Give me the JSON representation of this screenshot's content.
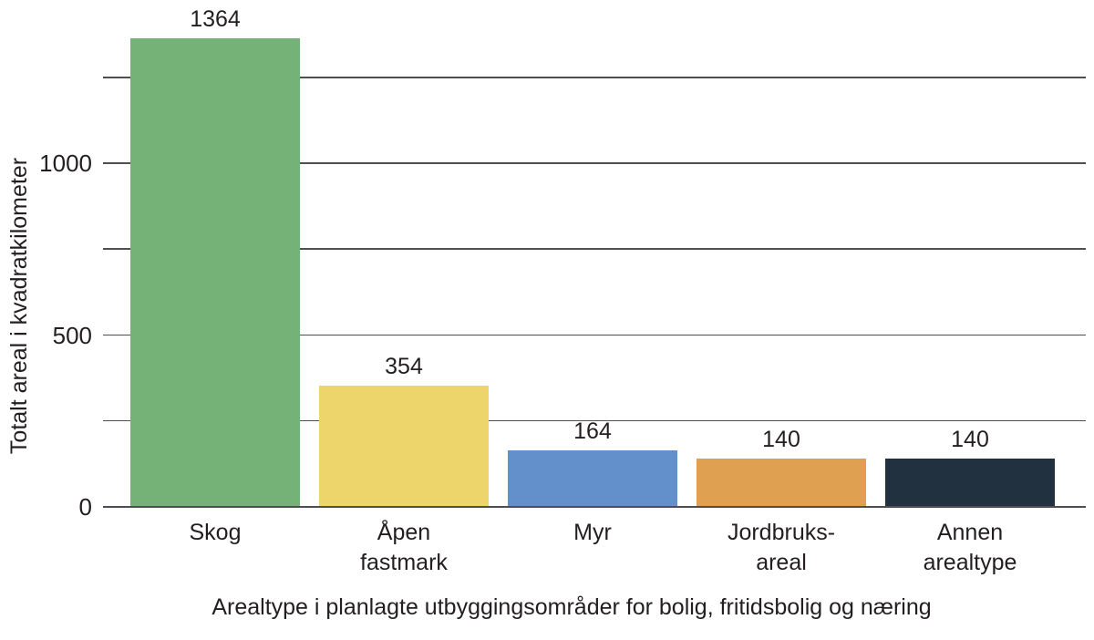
{
  "figure": {
    "background": "#ffffff",
    "text_color": "#231f20",
    "axis_color": "#4d4d52",
    "gridline_color": "#4f4f4f"
  },
  "chart_data": {
    "type": "bar",
    "title": "",
    "xlabel": "Arealtype i planlagte utbyggingsområder for bolig, fritidsbolig og næring",
    "ylabel": "Totalt areal i kvadratkilometer",
    "categories": [
      "Skog",
      "Åpen\nfastmark",
      "Myr",
      "Jordbruks-\nareal",
      "Annen\narealtype"
    ],
    "values": [
      1364,
      354,
      164,
      140,
      140
    ],
    "value_labels": [
      "1364",
      "354",
      "164",
      "140",
      "140"
    ],
    "bar_colors": [
      "#75b278",
      "#edd56b",
      "#6390ca",
      "#e0a052",
      "#22313f"
    ],
    "y_ticks": [
      {
        "value": 0,
        "label": "0"
      },
      {
        "value": 500,
        "label": "500"
      },
      {
        "value": 1000,
        "label": "1000"
      }
    ],
    "gridline_values": [
      250,
      500,
      750,
      1000,
      1250
    ],
    "ylim": [
      0,
      1475
    ],
    "grid": "horizontal",
    "legend": "none"
  }
}
